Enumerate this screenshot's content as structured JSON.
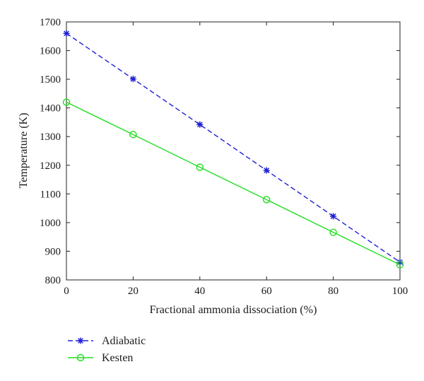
{
  "chart_data": {
    "type": "line",
    "title": "",
    "xlabel": "Fractional ammonia dissociation (%)",
    "ylabel": "Temperature (K)",
    "xlim": [
      0,
      100
    ],
    "ylim": [
      800,
      1700
    ],
    "xticks": [
      0,
      20,
      40,
      60,
      80,
      100
    ],
    "yticks": [
      800,
      900,
      1000,
      1100,
      1200,
      1300,
      1400,
      1500,
      1600,
      1700
    ],
    "grid": false,
    "legend_placement": "below",
    "series": [
      {
        "name": "Adiabatic",
        "color": "#1f1fd6",
        "line_style": "dashed",
        "marker": "asterisk",
        "x": [
          0,
          20,
          40,
          60,
          80,
          100
        ],
        "y": [
          1660,
          1501,
          1342,
          1182,
          1022,
          862
        ]
      },
      {
        "name": "Kesten",
        "color": "#22dd22",
        "line_style": "solid",
        "marker": "circle",
        "x": [
          0,
          20,
          40,
          60,
          80,
          100
        ],
        "y": [
          1420,
          1307,
          1193,
          1080,
          966,
          853
        ]
      }
    ]
  }
}
